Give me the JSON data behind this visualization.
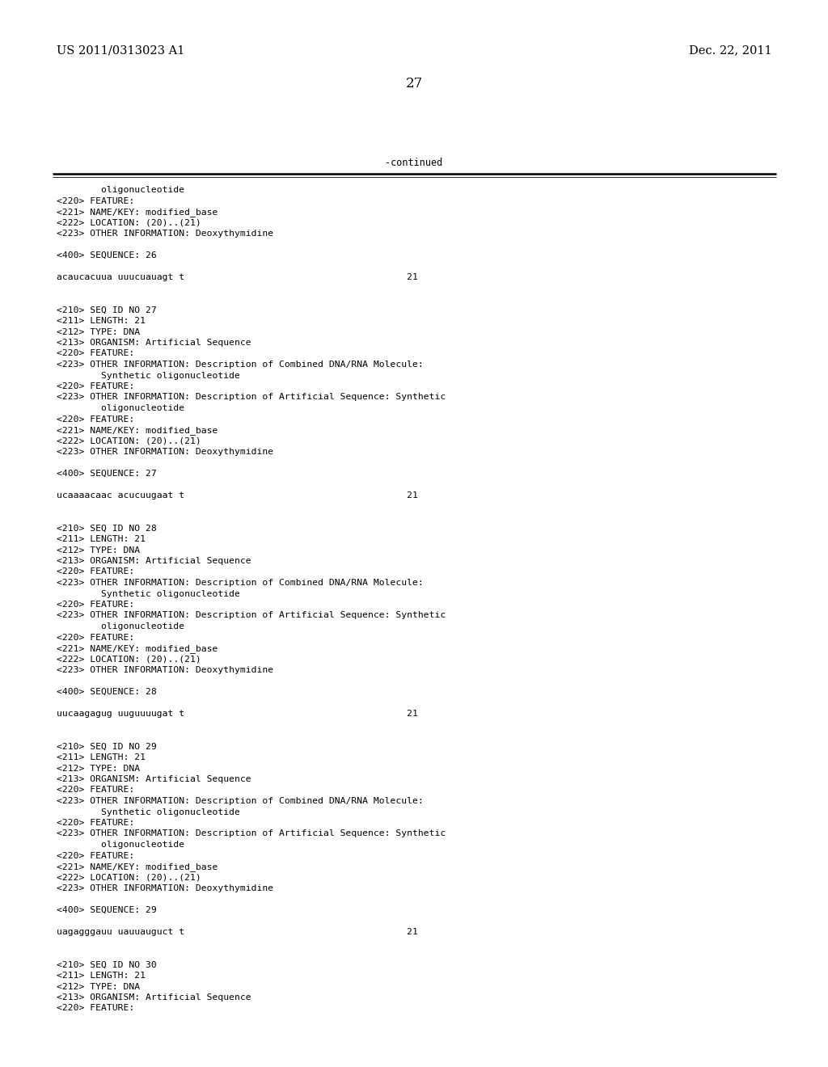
{
  "page_number": "27",
  "left_header": "US 2011/0313023 A1",
  "right_header": "Dec. 22, 2011",
  "continued_label": "-continued",
  "background_color": "#ffffff",
  "text_color": "#000000",
  "font_size_header": 10.5,
  "font_size_body": 8.2,
  "font_size_page_num": 12,
  "lines": [
    "        oligonucleotide",
    "<220> FEATURE:",
    "<221> NAME/KEY: modified_base",
    "<222> LOCATION: (20)..(21)",
    "<223> OTHER INFORMATION: Deoxythymidine",
    "",
    "<400> SEQUENCE: 26",
    "",
    "acaucacuua uuucuauagt t                                        21",
    "",
    "",
    "<210> SEQ ID NO 27",
    "<211> LENGTH: 21",
    "<212> TYPE: DNA",
    "<213> ORGANISM: Artificial Sequence",
    "<220> FEATURE:",
    "<223> OTHER INFORMATION: Description of Combined DNA/RNA Molecule:",
    "        Synthetic oligonucleotide",
    "<220> FEATURE:",
    "<223> OTHER INFORMATION: Description of Artificial Sequence: Synthetic",
    "        oligonucleotide",
    "<220> FEATURE:",
    "<221> NAME/KEY: modified_base",
    "<222> LOCATION: (20)..(21)",
    "<223> OTHER INFORMATION: Deoxythymidine",
    "",
    "<400> SEQUENCE: 27",
    "",
    "ucaaaacaac acucuugaat t                                        21",
    "",
    "",
    "<210> SEQ ID NO 28",
    "<211> LENGTH: 21",
    "<212> TYPE: DNA",
    "<213> ORGANISM: Artificial Sequence",
    "<220> FEATURE:",
    "<223> OTHER INFORMATION: Description of Combined DNA/RNA Molecule:",
    "        Synthetic oligonucleotide",
    "<220> FEATURE:",
    "<223> OTHER INFORMATION: Description of Artificial Sequence: Synthetic",
    "        oligonucleotide",
    "<220> FEATURE:",
    "<221> NAME/KEY: modified_base",
    "<222> LOCATION: (20)..(21)",
    "<223> OTHER INFORMATION: Deoxythymidine",
    "",
    "<400> SEQUENCE: 28",
    "",
    "uucaagagug uuguuuugat t                                        21",
    "",
    "",
    "<210> SEQ ID NO 29",
    "<211> LENGTH: 21",
    "<212> TYPE: DNA",
    "<213> ORGANISM: Artificial Sequence",
    "<220> FEATURE:",
    "<223> OTHER INFORMATION: Description of Combined DNA/RNA Molecule:",
    "        Synthetic oligonucleotide",
    "<220> FEATURE:",
    "<223> OTHER INFORMATION: Description of Artificial Sequence: Synthetic",
    "        oligonucleotide",
    "<220> FEATURE:",
    "<221> NAME/KEY: modified_base",
    "<222> LOCATION: (20)..(21)",
    "<223> OTHER INFORMATION: Deoxythymidine",
    "",
    "<400> SEQUENCE: 29",
    "",
    "uagagggauu uauuauguct t                                        21",
    "",
    "",
    "<210> SEQ ID NO 30",
    "<211> LENGTH: 21",
    "<212> TYPE: DNA",
    "<213> ORGANISM: Artificial Sequence",
    "<220> FEATURE:"
  ]
}
